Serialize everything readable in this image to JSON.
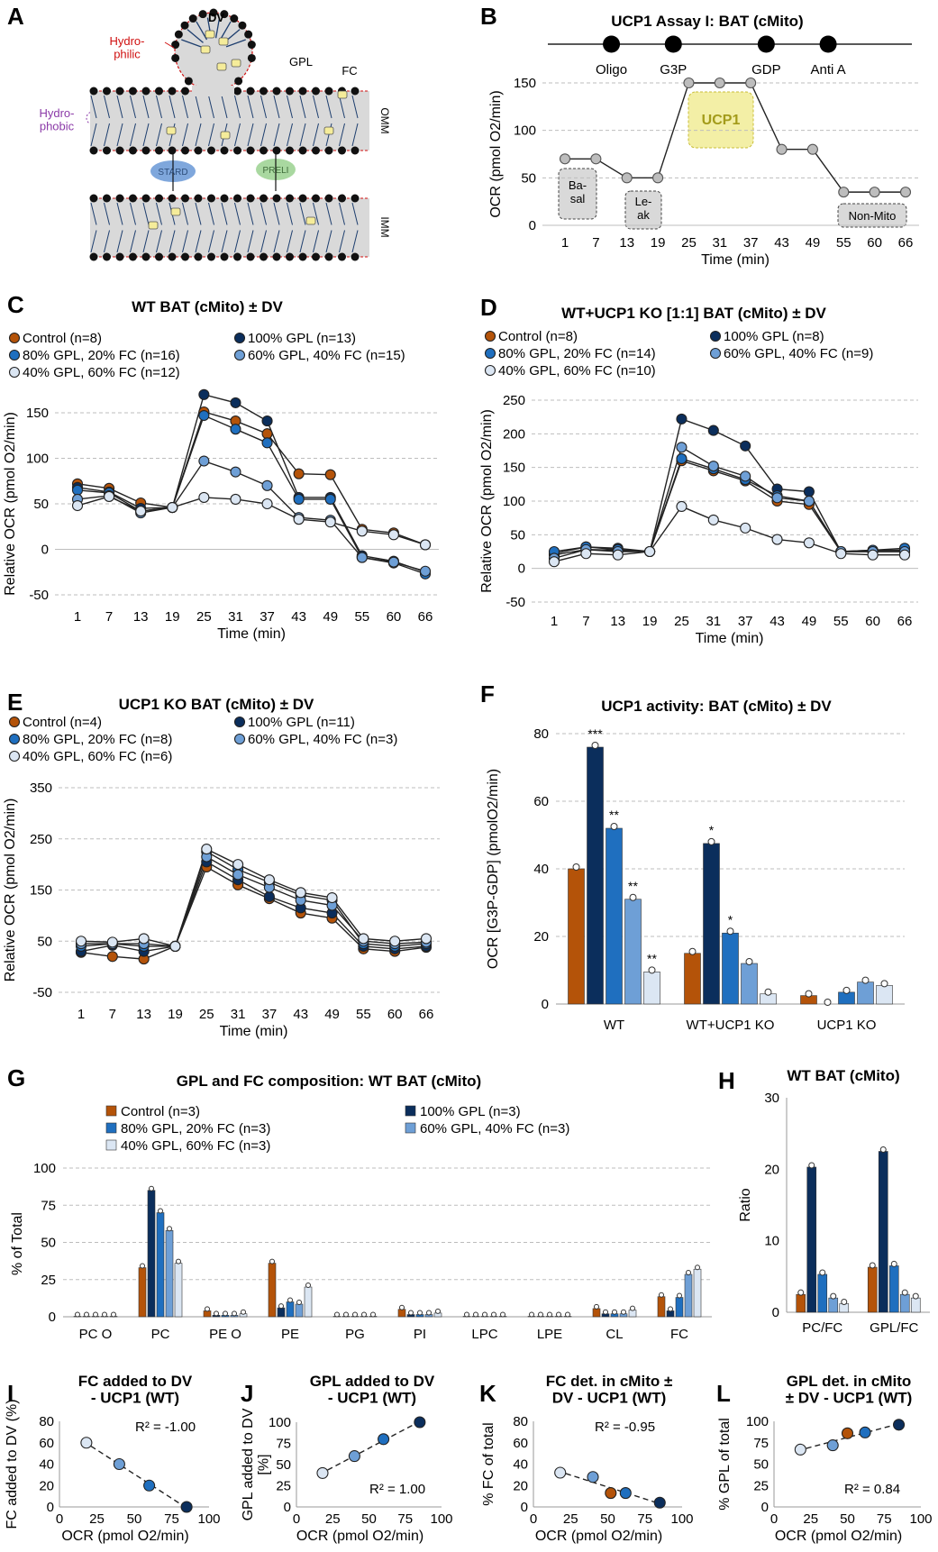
{
  "colors": {
    "control": "#b45309",
    "gpl100": "#0b2e5c",
    "gpl80": "#1f6fbf",
    "gpl60": "#6e9fd6",
    "gpl40": "#dbe6f3",
    "ucp1_box": "#f3efa6",
    "ucp1_text": "#a39b1a",
    "hydrophilic": "#d01010",
    "hydrophobic": "#8b3aa8"
  },
  "panel_labels": {
    "A": "A",
    "B": "B",
    "C": "C",
    "D": "D",
    "E": "E",
    "F": "F",
    "G": "G",
    "H": "H",
    "I": "I",
    "J": "J",
    "K": "K",
    "L": "L"
  },
  "panelA": {
    "dv": "DV",
    "hydrophilic": "Hydro-\nphilic",
    "hydrophobic": "Hydro-\nphobic",
    "gpl": "GPL",
    "fc": "FC",
    "omm": "OMM",
    "imm": "IMM",
    "stard": "STARD",
    "preli": "PRELI"
  },
  "legend_entries": {
    "control_8": "Control (n=8)",
    "gpl100_13": "100% GPL (n=13)",
    "gpl80_16": "80% GPL, 20% FC (n=16)",
    "gpl60_15": "60% GPL, 40% FC (n=15)",
    "gpl40_12": "40% GPL, 60% FC (n=12)",
    "gpl100_8": "100% GPL (n=8)",
    "gpl80_14": "80% GPL, 20% FC (n=14)",
    "gpl60_9": "60% GPL, 40% FC (n=9)",
    "gpl40_10": "40% GPL, 60% FC (n=10)",
    "control_4": "Control (n=4)",
    "gpl100_11": "100% GPL (n=11)",
    "gpl80_8": "80% GPL, 20% FC (n=8)",
    "gpl60_3": "60% GPL, 40% FC (n=3)",
    "gpl40_6": "40% GPL, 60% FC (n=6)",
    "control_3": "Control (n=3)",
    "gpl100_3": "100% GPL (n=3)",
    "gpl80_3": "80% GPL, 20% FC (n=3)",
    "gpl60_3b": "60% GPL, 40% FC (n=3)",
    "gpl40_3": "40% GPL, 60% FC (n=3)"
  },
  "chart_data": [
    {
      "id": "B",
      "type": "line",
      "title": "UCP1 Assay I: BAT (cMito)",
      "xlabel": "Time (min)",
      "ylabel": "OCR (pmol O2/min)",
      "categories": [
        "1",
        "7",
        "13",
        "19",
        "25",
        "31",
        "37",
        "43",
        "49",
        "55",
        "60",
        "66"
      ],
      "ylim": [
        0,
        150
      ],
      "yticks": [
        0,
        50,
        100,
        150
      ],
      "values": [
        70,
        70,
        50,
        50,
        150,
        150,
        150,
        80,
        80,
        35,
        35,
        35
      ],
      "injections": [
        {
          "label": "Oligo",
          "after": 1.5
        },
        {
          "label": "G3P",
          "after": 3.5
        },
        {
          "label": "GDP",
          "after": 6.5
        },
        {
          "label": "Anti A",
          "after": 8.5
        }
      ],
      "annotations": {
        "basal": "Ba-\nsal",
        "leak": "Le-\nak",
        "ucp1": "UCP1",
        "nonmito": "Non-Mito"
      }
    },
    {
      "id": "C",
      "type": "line",
      "title": "WT BAT (cMito) ± DV",
      "xlabel": "Time (min)",
      "ylabel": "Relative OCR (pmol O2/min)",
      "categories": [
        "1",
        "7",
        "13",
        "19",
        "25",
        "31",
        "37",
        "43",
        "49",
        "55",
        "60",
        "66"
      ],
      "ylim": [
        -50,
        150
      ],
      "yticks": [
        -50,
        0,
        50,
        100,
        150
      ],
      "series": [
        {
          "name": "Control (n=8)",
          "key": "control",
          "values": [
            72,
            67,
            51,
            46,
            151,
            141,
            127,
            83,
            82,
            22,
            18,
            5
          ]
        },
        {
          "name": "100% GPL (n=13)",
          "key": "gpl100",
          "values": [
            68,
            63,
            45,
            46,
            170,
            161,
            141,
            57,
            57,
            -7,
            -13,
            -25
          ]
        },
        {
          "name": "80% GPL, 20% FC (n=16)",
          "key": "gpl80",
          "values": [
            65,
            62,
            42,
            46,
            147,
            132,
            117,
            55,
            55,
            -9,
            -15,
            -27
          ]
        },
        {
          "name": "60% GPL, 40% FC (n=15)",
          "key": "gpl60",
          "values": [
            55,
            59,
            40,
            46,
            97,
            85,
            70,
            35,
            32,
            -9,
            -14,
            -24
          ]
        },
        {
          "name": "40% GPL, 60% FC (n=12)",
          "key": "gpl40",
          "values": [
            48,
            58,
            42,
            46,
            57,
            55,
            50,
            33,
            30,
            20,
            16,
            5
          ]
        }
      ]
    },
    {
      "id": "D",
      "type": "line",
      "title": "WT+UCP1 KO [1:1] BAT (cMito) ± DV",
      "xlabel": "Time (min)",
      "ylabel": "Relative OCR (pmol O2/min)",
      "categories": [
        "1",
        "7",
        "13",
        "19",
        "25",
        "31",
        "37",
        "43",
        "49",
        "55",
        "60",
        "66"
      ],
      "ylim": [
        -50,
        250
      ],
      "yticks": [
        -50,
        0,
        50,
        100,
        150,
        200,
        250
      ],
      "series": [
        {
          "name": "Control (n=8)",
          "key": "control",
          "values": [
            20,
            28,
            27,
            25,
            160,
            145,
            130,
            100,
            95,
            25,
            25,
            25
          ]
        },
        {
          "name": "100% GPL (n=8)",
          "key": "gpl100",
          "values": [
            22,
            32,
            30,
            25,
            222,
            205,
            182,
            118,
            114,
            25,
            27,
            27
          ]
        },
        {
          "name": "80% GPL, 20% FC (n=14)",
          "key": "gpl80",
          "values": [
            25,
            32,
            28,
            25,
            163,
            148,
            132,
            108,
            100,
            25,
            27,
            30
          ]
        },
        {
          "name": "60% GPL, 40% FC (n=9)",
          "key": "gpl60",
          "values": [
            15,
            28,
            25,
            25,
            180,
            152,
            137,
            105,
            100,
            25,
            25,
            25
          ]
        },
        {
          "name": "40% GPL, 60% FC (n=10)",
          "key": "gpl40",
          "values": [
            10,
            22,
            20,
            25,
            92,
            72,
            60,
            43,
            38,
            22,
            20,
            20
          ]
        }
      ]
    },
    {
      "id": "E",
      "type": "line",
      "title": "UCP1 KO BAT (cMito) ± DV",
      "xlabel": "Time (min)",
      "ylabel": "Relative OCR (pmol O2/min)",
      "categories": [
        "1",
        "7",
        "13",
        "19",
        "25",
        "31",
        "37",
        "43",
        "49",
        "55",
        "60",
        "66"
      ],
      "ylim": [
        -50,
        350
      ],
      "yticks": [
        -50,
        50,
        150,
        250,
        350
      ],
      "series": [
        {
          "name": "Control (n=4)",
          "key": "control",
          "values": [
            28,
            20,
            15,
            40,
            195,
            160,
            133,
            105,
            95,
            35,
            30,
            38
          ]
        },
        {
          "name": "100% GPL (n=11)",
          "key": "gpl100",
          "values": [
            30,
            42,
            30,
            40,
            205,
            170,
            137,
            115,
            105,
            40,
            35,
            40
          ]
        },
        {
          "name": "80% GPL, 20% FC (n=8)",
          "key": "gpl80",
          "values": [
            40,
            45,
            40,
            40,
            225,
            190,
            165,
            140,
            130,
            45,
            40,
            45
          ]
        },
        {
          "name": "60% GPL, 40% FC (n=3)",
          "key": "gpl60",
          "values": [
            45,
            45,
            45,
            40,
            215,
            180,
            155,
            130,
            120,
            50,
            45,
            48
          ]
        },
        {
          "name": "40% GPL, 60% FC (n=6)",
          "key": "gpl40",
          "values": [
            50,
            48,
            55,
            40,
            230,
            200,
            170,
            145,
            135,
            55,
            50,
            55
          ]
        }
      ]
    },
    {
      "id": "F",
      "type": "bar",
      "title": "UCP1 activity: BAT (cMito) ± DV",
      "ylabel": "OCR [G3P-GDP] (pmolO2/min)",
      "categories": [
        "WT",
        "WT+UCP1 KO",
        "UCP1 KO"
      ],
      "ylim": [
        0,
        80
      ],
      "yticks": [
        0,
        20,
        40,
        60,
        80
      ],
      "series": [
        {
          "name": "Control",
          "key": "control",
          "values": [
            40,
            15,
            2.5
          ]
        },
        {
          "name": "100% GPL",
          "key": "gpl100",
          "values": [
            76,
            47.5,
            0
          ]
        },
        {
          "name": "80% GPL, 20% FC",
          "key": "gpl80",
          "values": [
            52,
            21,
            3.5
          ]
        },
        {
          "name": "60% GPL, 40% FC",
          "key": "gpl60",
          "values": [
            31,
            12,
            6.5
          ]
        },
        {
          "name": "40% GPL, 60% FC",
          "key": "gpl40",
          "values": [
            9.5,
            3,
            5.5
          ]
        }
      ],
      "significance": [
        [
          "",
          "***",
          "**",
          "**",
          "**"
        ],
        [
          "",
          "*",
          "*",
          "",
          ""
        ],
        [
          "",
          "",
          "",
          "",
          ""
        ]
      ]
    },
    {
      "id": "G",
      "type": "bar",
      "title": "GPL and FC composition: WT BAT (cMito)",
      "ylabel": "% of Total",
      "categories": [
        "PC O",
        "PC",
        "PE O",
        "PE",
        "PG",
        "PI",
        "LPC",
        "LPE",
        "CL",
        "FC"
      ],
      "ylim": [
        0,
        100
      ],
      "yticks": [
        0,
        25,
        50,
        75,
        100
      ],
      "series": [
        {
          "name": "Control (n=3)",
          "key": "control",
          "values": [
            0.3,
            33,
            4,
            36,
            0.3,
            5,
            0.3,
            0.3,
            5.5,
            13.5
          ]
        },
        {
          "name": "100% GPL (n=3)",
          "key": "gpl100",
          "values": [
            0.3,
            85,
            1,
            6,
            0.3,
            1.5,
            0.3,
            0.3,
            2,
            4
          ]
        },
        {
          "name": "80% GPL, 20% FC (n=3)",
          "key": "gpl80",
          "values": [
            0.3,
            70,
            1,
            10,
            0.3,
            1.5,
            0.3,
            0.3,
            2,
            13
          ]
        },
        {
          "name": "60% GPL, 40% FC (n=3)",
          "key": "gpl60",
          "values": [
            0.3,
            58,
            1,
            8.5,
            0.3,
            1.5,
            0.3,
            0.3,
            2,
            28.5
          ]
        },
        {
          "name": "40% GPL, 60% FC (n=3)",
          "key": "gpl40",
          "values": [
            0.3,
            36,
            2,
            20,
            0.3,
            2.5,
            0.3,
            0.3,
            4.5,
            32
          ]
        }
      ]
    },
    {
      "id": "H",
      "type": "bar",
      "title": "WT BAT (cMito)",
      "ylabel": "Ratio",
      "categories": [
        "PC/FC",
        "GPL/FC"
      ],
      "ylim": [
        0,
        30
      ],
      "yticks": [
        0,
        10,
        20,
        30
      ],
      "series": [
        {
          "name": "Control",
          "key": "control",
          "values": [
            2.5,
            6.3
          ]
        },
        {
          "name": "100% GPL",
          "key": "gpl100",
          "values": [
            20.3,
            22.5
          ]
        },
        {
          "name": "80% GPL, 20% FC",
          "key": "gpl80",
          "values": [
            5.3,
            6.5
          ]
        },
        {
          "name": "60% GPL, 40% FC",
          "key": "gpl60",
          "values": [
            2,
            2.5
          ]
        },
        {
          "name": "40% GPL, 60% FC",
          "key": "gpl40",
          "values": [
            1.2,
            2
          ]
        }
      ]
    },
    {
      "id": "I",
      "type": "scatter",
      "title": "FC added to DV\n- UCP1 (WT)",
      "xlabel": "OCR (pmol O2/min)",
      "ylabel": "FC added to DV (%)",
      "xlim": [
        0,
        100
      ],
      "xticks": [
        0,
        25,
        50,
        75,
        100
      ],
      "ylim": [
        0,
        80
      ],
      "yticks": [
        0,
        20,
        40,
        60,
        80
      ],
      "r2": "R² = -1.00",
      "points": [
        {
          "x": 18,
          "y": 60,
          "key": "gpl40"
        },
        {
          "x": 40,
          "y": 40,
          "key": "gpl60"
        },
        {
          "x": 60,
          "y": 20,
          "key": "gpl80"
        },
        {
          "x": 85,
          "y": 0,
          "key": "gpl100"
        }
      ]
    },
    {
      "id": "J",
      "type": "scatter",
      "title": "GPL added  to DV\n- UCP1 (WT)",
      "xlabel": "OCR (pmol O2/min)",
      "ylabel": "GPL added to DV\n[%]",
      "xlim": [
        0,
        100
      ],
      "xticks": [
        0,
        25,
        50,
        75,
        100
      ],
      "ylim": [
        0,
        100
      ],
      "yticks": [
        0,
        25,
        50,
        75,
        100
      ],
      "r2": "R² = 1.00",
      "points": [
        {
          "x": 18,
          "y": 40,
          "key": "gpl40"
        },
        {
          "x": 40,
          "y": 60,
          "key": "gpl60"
        },
        {
          "x": 60,
          "y": 80,
          "key": "gpl80"
        },
        {
          "x": 85,
          "y": 100,
          "key": "gpl100"
        }
      ]
    },
    {
      "id": "K",
      "type": "scatter",
      "title": "FC det. in cMito ±\nDV - UCP1 (WT)",
      "xlabel": "OCR (pmol O2/min)",
      "ylabel": "% FC of total",
      "xlim": [
        0,
        100
      ],
      "xticks": [
        0,
        25,
        50,
        75,
        100
      ],
      "ylim": [
        0,
        80
      ],
      "yticks": [
        0,
        20,
        40,
        60,
        80
      ],
      "r2": "R² = -0.95",
      "points": [
        {
          "x": 18,
          "y": 32,
          "key": "gpl40"
        },
        {
          "x": 40,
          "y": 28,
          "key": "gpl60"
        },
        {
          "x": 52,
          "y": 13,
          "key": "control"
        },
        {
          "x": 62,
          "y": 13,
          "key": "gpl80"
        },
        {
          "x": 85,
          "y": 4,
          "key": "gpl100"
        }
      ]
    },
    {
      "id": "L",
      "type": "scatter",
      "title": "GPL det. in cMito\n± DV - UCP1 (WT)",
      "xlabel": "OCR (pmol O2/min)",
      "ylabel": "% GPL of total",
      "xlim": [
        0,
        100
      ],
      "xticks": [
        0,
        25,
        50,
        75,
        100
      ],
      "ylim": [
        0,
        100
      ],
      "yticks": [
        0,
        25,
        50,
        75,
        100
      ],
      "r2": "R² = 0.84",
      "points": [
        {
          "x": 18,
          "y": 67,
          "key": "gpl40"
        },
        {
          "x": 40,
          "y": 72,
          "key": "gpl60"
        },
        {
          "x": 50,
          "y": 86,
          "key": "control"
        },
        {
          "x": 62,
          "y": 87,
          "key": "gpl80"
        },
        {
          "x": 85,
          "y": 96,
          "key": "gpl100"
        }
      ]
    }
  ]
}
